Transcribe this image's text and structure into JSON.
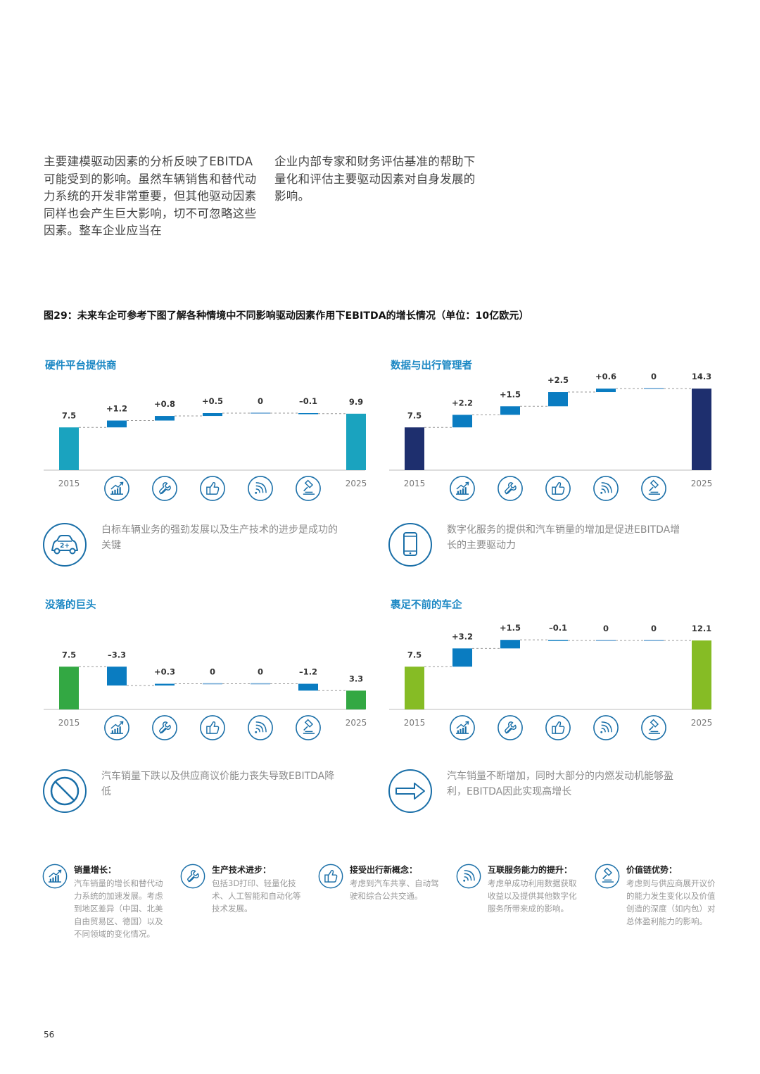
{
  "intro": {
    "left": "主要建模驱动因素的分析反映了EBITDA可能受到的影响。虽然车辆销售和替代动力系统的开发非常重要，但其他驱动因素同样也会产生巨大影响，切不可忽略这些因素。整车企业应当在",
    "right": "企业内部专家和财务评估基准的帮助下量化和评估主要驱动因素对自身发展的影响。"
  },
  "figure_title": "图29：未来车企可参考下图了解各种情境中不同影响驱动因素作用下EBITDA的增长情况（单位：10亿欧元）",
  "colors": {
    "teal": "#1aa3bf",
    "navy": "#1e2f6e",
    "green": "#33a843",
    "lime": "#86bc25",
    "blue": "#0a7cc1",
    "accent": "#1c88c4",
    "icon": "#1a6fa8"
  },
  "driver_icons": [
    "sales-growth-icon",
    "wrench-icon",
    "thumbs-up-icon",
    "connectivity-icon",
    "gavel-icon"
  ],
  "chart_data": [
    {
      "type": "waterfall",
      "title": "硬件平台提供商",
      "categories": [
        "2015",
        "销量增长",
        "生产技术进步",
        "接受出行新概念",
        "互联服务能力的提升",
        "价值链优势",
        "2025"
      ],
      "values": [
        7.5,
        1.2,
        0.8,
        0.5,
        0,
        -0.1,
        9.9
      ],
      "labels": [
        "7.5",
        "+1.2",
        "+0.8",
        "+0.5",
        "0",
        "–0.1",
        "9.9"
      ],
      "total_color": "#1aa3bf",
      "start_label": "2015",
      "end_label": "2025"
    },
    {
      "type": "waterfall",
      "title": "数据与出行管理者",
      "categories": [
        "2015",
        "销量增长",
        "生产技术进步",
        "接受出行新概念",
        "互联服务能力的提升",
        "价值链优势",
        "2025"
      ],
      "values": [
        7.5,
        2.2,
        1.5,
        2.5,
        0.6,
        0,
        14.3
      ],
      "labels": [
        "7.5",
        "+2.2",
        "+1.5",
        "+2.5",
        "+0.6",
        "0",
        "14.3"
      ],
      "total_color": "#1e2f6e",
      "start_label": "2015",
      "end_label": "2025"
    },
    {
      "type": "waterfall",
      "title": "没落的巨头",
      "categories": [
        "2015",
        "销量增长",
        "生产技术进步",
        "接受出行新概念",
        "互联服务能力的提升",
        "价值链优势",
        "2025"
      ],
      "values": [
        7.5,
        -3.3,
        0.3,
        0,
        0,
        -1.2,
        3.3
      ],
      "labels": [
        "7.5",
        "–3.3",
        "+0.3",
        "0",
        "0",
        "–1.2",
        "3.3"
      ],
      "total_color": "#33a843",
      "start_label": "2015",
      "end_label": "2025"
    },
    {
      "type": "waterfall",
      "title": "裹足不前的车企",
      "categories": [
        "2015",
        "销量增长",
        "生产技术进步",
        "接受出行新概念",
        "互联服务能力的提升",
        "价值链优势",
        "2025"
      ],
      "values": [
        7.5,
        3.2,
        1.5,
        -0.1,
        0,
        0,
        12.1
      ],
      "labels": [
        "7.5",
        "+3.2",
        "+1.5",
        "–0.1",
        "0",
        "0",
        "12.1"
      ],
      "total_color": "#86bc25",
      "start_label": "2015",
      "end_label": "2025"
    }
  ],
  "notes": [
    {
      "icon": "car-icon",
      "badge": "2+",
      "text": "白标车辆业务的强劲发展以及生产技术的进步是成功的关键"
    },
    {
      "icon": "smartphone-icon",
      "text": "数字化服务的提供和汽车销量的增加是促进EBITDA增长的主要驱动力"
    },
    {
      "icon": "prohibited-icon",
      "text": "汽车销量下跌以及供应商议价能力丧失导致EBITDA降低"
    },
    {
      "icon": "arrow-right-icon",
      "text": "汽车销量不断增加，同时大部分的内燃发动机能够盈利，EBITDA因此实现高增长"
    }
  ],
  "legend": [
    {
      "icon": "sales-growth-icon",
      "title": "销量增长：",
      "desc": "汽车销量的增长和替代动力系统的加速发展。考虑到地区差异（中国、北美自由贸易区、德国）以及不同领域的变化情况。"
    },
    {
      "icon": "wrench-icon",
      "title": "生产技术进步：",
      "desc": "包括3D打印、轻量化技术、人工智能和自动化等技术发展。"
    },
    {
      "icon": "thumbs-up-icon",
      "title": "接受出行新概念：",
      "desc": "考虑到汽车共享、自动驾驶和综合公共交通。"
    },
    {
      "icon": "connectivity-icon",
      "title": "互联服务能力的提升：",
      "desc": "考虑单成功利用数据获取收益以及提供其他数字化服务所带来成的影响。"
    },
    {
      "icon": "gavel-icon",
      "title": "价值链优势：",
      "desc": "考虑到与供应商展开议价的能力发生变化以及价值创造的深度（如内包）对总体盈利能力的影响。"
    }
  ],
  "page_number": "56"
}
